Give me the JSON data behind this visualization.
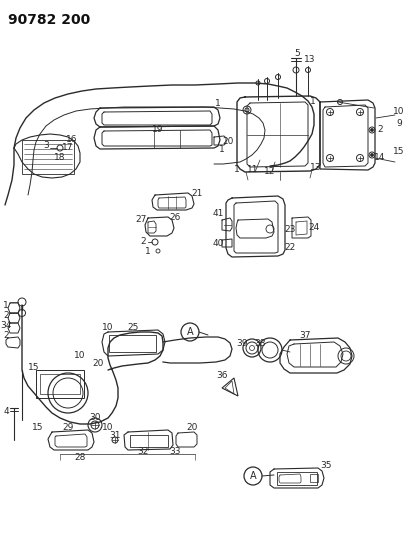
{
  "title": "90782 200",
  "bg_color": "#ffffff",
  "line_color": "#2a2a2a",
  "label_fontsize": 6.5,
  "bold_fontsize": 10,
  "fig_w": 4.07,
  "fig_h": 5.33,
  "dpi": 100
}
